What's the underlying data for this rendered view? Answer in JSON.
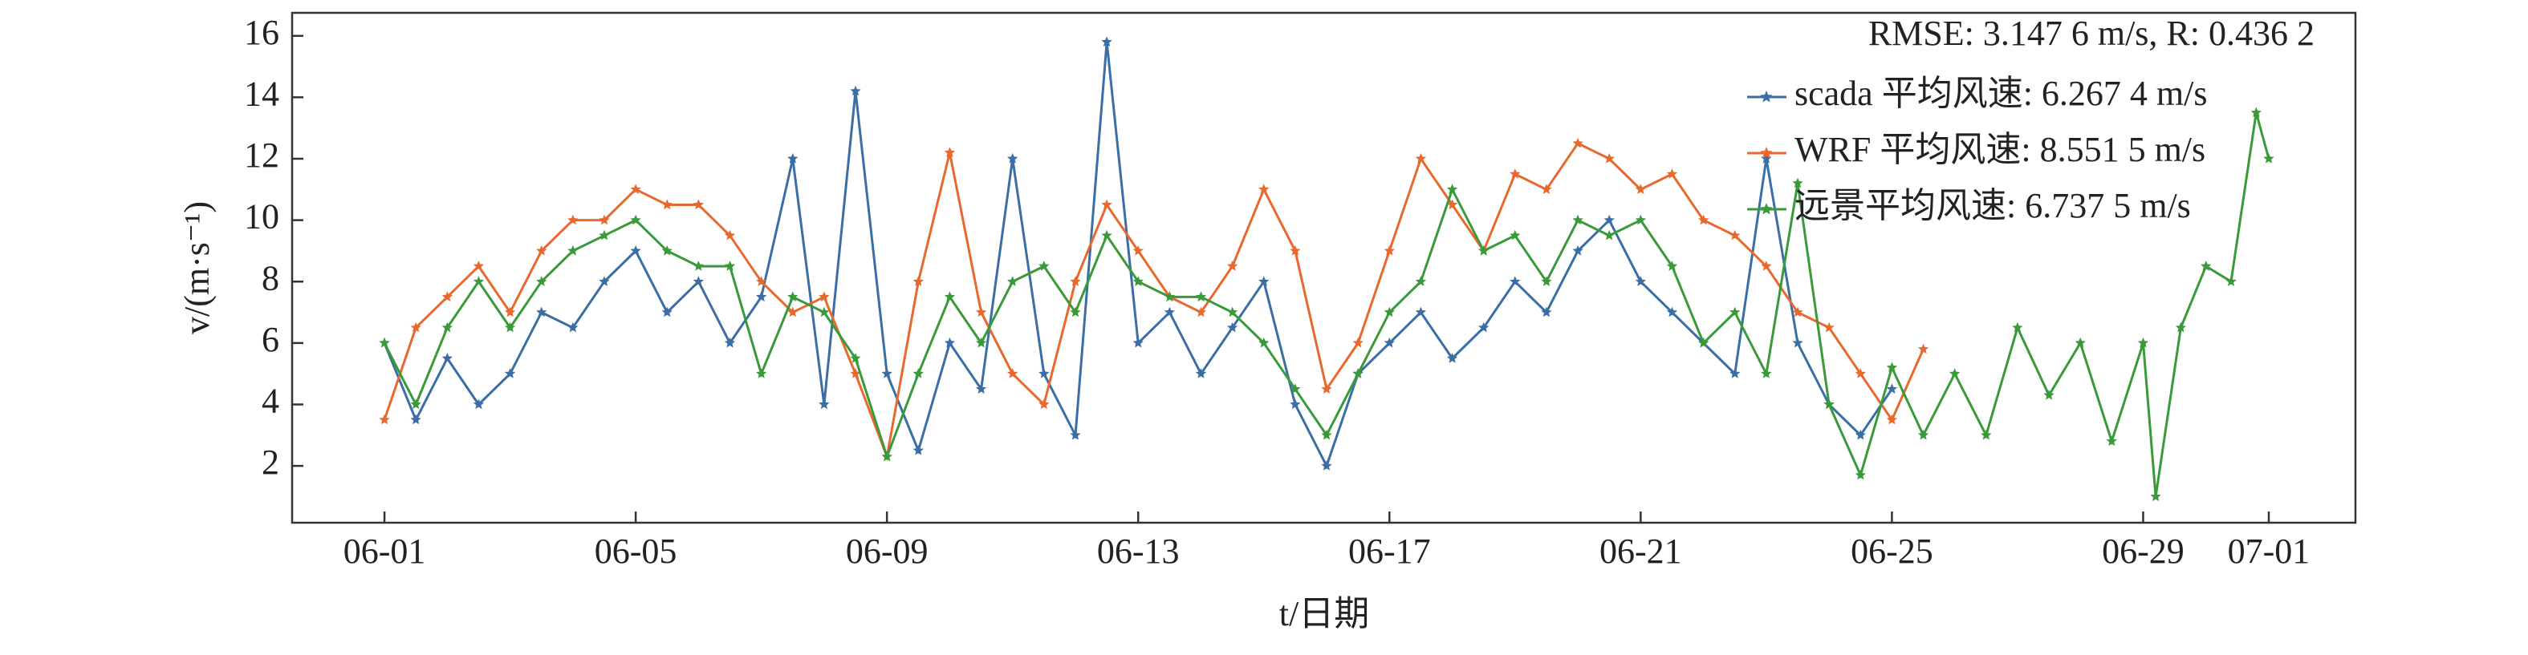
{
  "chart_data": {
    "type": "line",
    "annotation": "RMSE: 3.147 6 m/s, R: 0.436 2",
    "xlabel": "t/日期",
    "ylabel": "v/(m·s⁻¹)",
    "xlim": [
      -1.47,
      31.38
    ],
    "xticks": [
      {
        "value": 0,
        "label": "06-01"
      },
      {
        "value": 4,
        "label": "06-05"
      },
      {
        "value": 8,
        "label": "06-09"
      },
      {
        "value": 12,
        "label": "06-13"
      },
      {
        "value": 16,
        "label": "06-17"
      },
      {
        "value": 20,
        "label": "06-21"
      },
      {
        "value": 24,
        "label": "06-25"
      },
      {
        "value": 28,
        "label": "06-29"
      },
      {
        "value": 30,
        "label": "07-01"
      }
    ],
    "ylim": [
      0.15,
      16.75
    ],
    "yticks": [
      2,
      4,
      6,
      8,
      10,
      12,
      14,
      16
    ],
    "legend": "upper right",
    "series": [
      {
        "name": "scada 平均风速: 6.267 4 m/s",
        "color": "#3a6ea5",
        "x": [
          0,
          0.5,
          1,
          1.5,
          2,
          2.5,
          3,
          3.5,
          4,
          4.5,
          5,
          5.5,
          6,
          6.5,
          7,
          7.5,
          8,
          8.5,
          9,
          9.5,
          10,
          10.5,
          11,
          11.5,
          12,
          12.5,
          13,
          13.5,
          14,
          14.5,
          15,
          15.5,
          16,
          16.5,
          17,
          17.5,
          18,
          18.5,
          19,
          19.5,
          20,
          20.5,
          21,
          21.5,
          22,
          22.5,
          23,
          23.5,
          24
        ],
        "values": [
          6,
          3.5,
          5.5,
          4,
          5,
          7,
          6.5,
          8,
          9,
          7,
          8,
          6,
          7.5,
          12,
          4,
          14.2,
          5,
          2.5,
          6,
          4.5,
          12,
          5,
          3,
          15.8,
          6,
          7,
          5,
          6.5,
          8,
          4,
          2,
          5,
          6,
          7,
          5.5,
          6.5,
          8,
          7,
          9,
          10,
          8,
          7,
          6,
          5,
          12,
          6,
          4,
          3,
          4.5
        ]
      },
      {
        "name": "WRF 平均风速: 8.551 5 m/s",
        "color": "#e8692d",
        "x": [
          0,
          0.5,
          1,
          1.5,
          2,
          2.5,
          3,
          3.5,
          4,
          4.5,
          5,
          5.5,
          6,
          6.5,
          7,
          7.5,
          8,
          8.5,
          9,
          9.5,
          10,
          10.5,
          11,
          11.5,
          12,
          12.5,
          13,
          13.5,
          14,
          14.5,
          15,
          15.5,
          16,
          16.5,
          17,
          17.5,
          18,
          18.5,
          19,
          19.5,
          20,
          20.5,
          21,
          21.5,
          22,
          22.5,
          23,
          23.5,
          24,
          24.5
        ],
        "values": [
          3.5,
          6.5,
          7.5,
          8.5,
          7,
          9,
          10,
          10,
          11,
          10.5,
          10.5,
          9.5,
          8,
          7,
          7.5,
          5,
          2.3,
          8,
          12.2,
          7,
          5,
          4,
          8,
          10.5,
          9,
          7.5,
          7,
          8.5,
          11,
          9,
          4.5,
          6,
          9,
          12,
          10.5,
          9,
          11.5,
          11,
          12.5,
          12,
          11,
          11.5,
          10,
          9.5,
          8.5,
          7,
          6.5,
          5,
          3.5,
          5.8
        ]
      },
      {
        "name": "远景平均风速: 6.737 5 m/s",
        "color": "#3a9a3a",
        "x": [
          0,
          0.5,
          1,
          1.5,
          2,
          2.5,
          3,
          3.5,
          4,
          4.5,
          5,
          5.5,
          6,
          6.5,
          7,
          7.5,
          8,
          8.5,
          9,
          9.5,
          10,
          10.5,
          11,
          11.5,
          12,
          12.5,
          13,
          13.5,
          14,
          14.5,
          15,
          15.5,
          16,
          16.5,
          17,
          17.5,
          18,
          18.5,
          19,
          19.5,
          20,
          20.5,
          21,
          21.5,
          22,
          22.5,
          23,
          23.5,
          24,
          24.5,
          25,
          25.5,
          26,
          26.5,
          27,
          27.5,
          28,
          28.2,
          28.6,
          29,
          29.4,
          29.8,
          30
        ],
        "values": [
          6,
          4,
          6.5,
          8,
          6.5,
          8,
          9,
          9.5,
          10,
          9,
          8.5,
          8.5,
          5,
          7.5,
          7,
          5.5,
          2.3,
          5,
          7.5,
          6,
          8,
          8.5,
          7,
          9.5,
          8,
          7.5,
          7.5,
          7,
          6,
          4.5,
          3,
          5,
          7,
          8,
          11,
          9,
          9.5,
          8,
          10,
          9.5,
          10,
          8.5,
          6,
          7,
          5,
          11.2,
          4,
          1.7,
          5.2,
          3,
          5,
          3,
          6.5,
          4.3,
          6,
          2.8,
          6,
          1,
          6.5,
          8.5,
          8,
          13.5,
          12
        ]
      }
    ]
  }
}
